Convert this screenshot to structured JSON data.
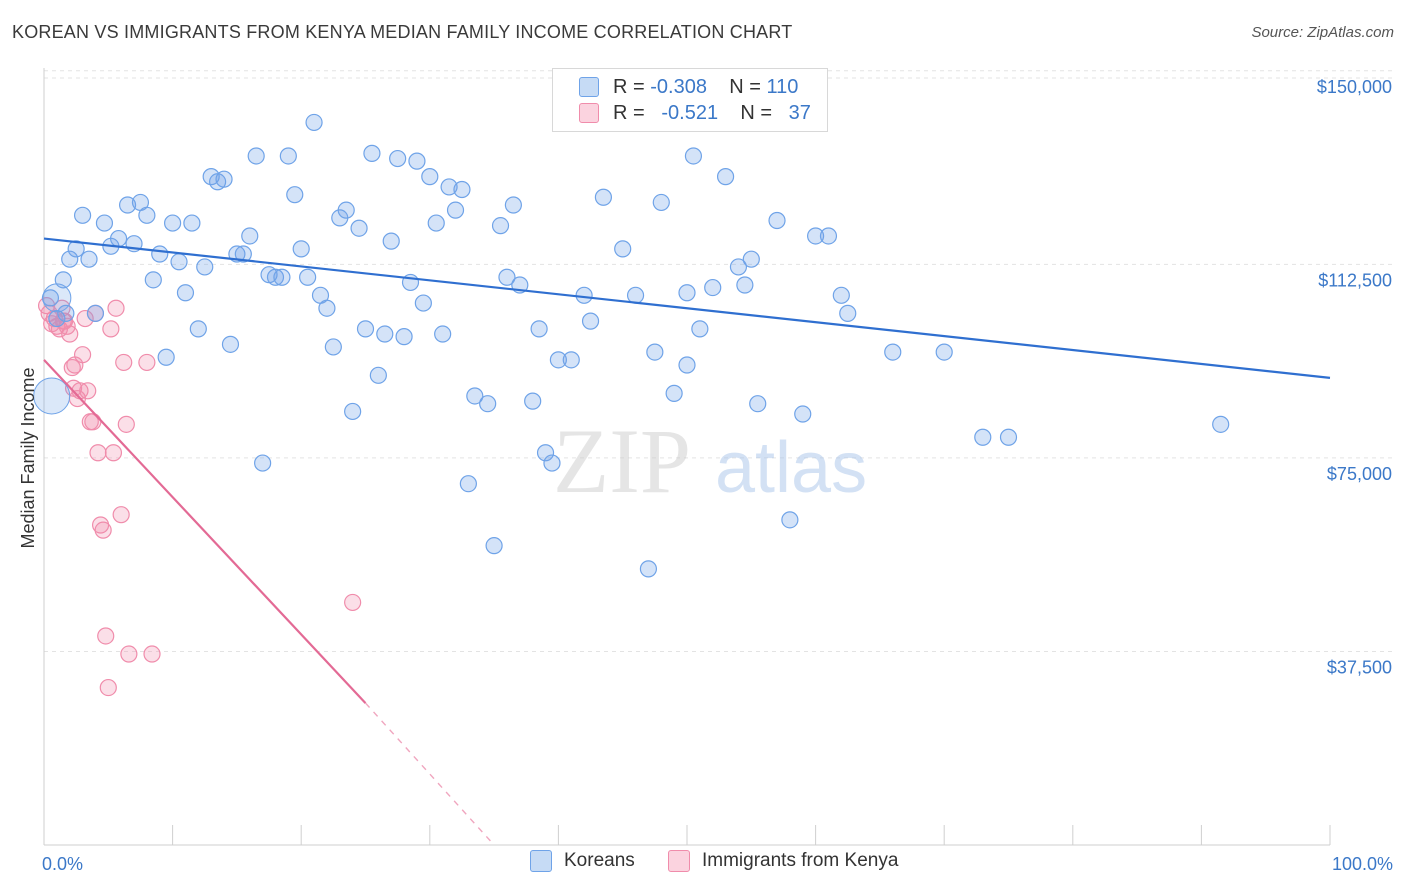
{
  "header": {
    "title": "KOREAN VS IMMIGRANTS FROM KENYA MEDIAN FAMILY INCOME CORRELATION CHART",
    "source": "Source: ZipAtlas.com"
  },
  "watermark": {
    "zip": "ZIP",
    "atlas": "atlas"
  },
  "legend": {
    "rows": [
      {
        "r_label": "R =",
        "r_value": "-0.308",
        "n_label": "N =",
        "n_value": "110",
        "color": "#6fa3e8"
      },
      {
        "r_label": "R =",
        "r_value": "-0.521",
        "n_label": "N =",
        "n_value": "37",
        "color": "#f08cab"
      }
    ]
  },
  "bottom_legend": {
    "koreans": "Koreans",
    "kenya": "Immigrants from Kenya"
  },
  "chart_data": {
    "type": "scatter",
    "title": "KOREAN VS IMMIGRANTS FROM KENYA MEDIAN FAMILY INCOME CORRELATION CHART",
    "ylabel": "Median Family Income",
    "xlabel": "",
    "xlim": [
      0,
      100
    ],
    "ylim": [
      0,
      155000
    ],
    "x_tick_labels": [
      "0.0%",
      "100.0%"
    ],
    "y_ticks": [
      37500,
      75000,
      112500,
      150000
    ],
    "y_tick_labels": [
      "$37,500",
      "$75,000",
      "$112,500",
      "$150,000"
    ],
    "grid": true,
    "series": [
      {
        "name": "Koreans",
        "color": "#6fa3e8",
        "trend": {
          "x": [
            0,
            100
          ],
          "y": [
            117500,
            90500
          ]
        },
        "points": [
          [
            0.5,
            106000
          ],
          [
            1,
            102000
          ],
          [
            1.5,
            109500
          ],
          [
            2,
            113500
          ],
          [
            2.5,
            115500
          ],
          [
            3,
            122000
          ],
          [
            3.5,
            113500
          ],
          [
            4,
            103000
          ],
          [
            4.7,
            120500
          ],
          [
            5.2,
            116000
          ],
          [
            5.8,
            117500
          ],
          [
            6.5,
            124000
          ],
          [
            7,
            116500
          ],
          [
            7.5,
            124500
          ],
          [
            8,
            122000
          ],
          [
            8.5,
            109500
          ],
          [
            9,
            114500
          ],
          [
            9.5,
            94500
          ],
          [
            10,
            120500
          ],
          [
            10.5,
            113000
          ],
          [
            11,
            107000
          ],
          [
            11.5,
            120500
          ],
          [
            12,
            100000
          ],
          [
            12.5,
            112000
          ],
          [
            13,
            129500
          ],
          [
            13.5,
            128500
          ],
          [
            14,
            129000
          ],
          [
            14.5,
            97000
          ],
          [
            15,
            114500
          ],
          [
            15.5,
            114500
          ],
          [
            16,
            118000
          ],
          [
            16.5,
            133500
          ],
          [
            17,
            74000
          ],
          [
            17.5,
            110500
          ],
          [
            18,
            110000
          ],
          [
            18.5,
            110000
          ],
          [
            19,
            133500
          ],
          [
            19.5,
            126000
          ],
          [
            20,
            115500
          ],
          [
            20.5,
            110000
          ],
          [
            21,
            140000
          ],
          [
            21.5,
            106500
          ],
          [
            22,
            104000
          ],
          [
            22.5,
            96500
          ],
          [
            23,
            121500
          ],
          [
            23.5,
            123000
          ],
          [
            24,
            84000
          ],
          [
            24.5,
            119500
          ],
          [
            25,
            100000
          ],
          [
            25.5,
            134000
          ],
          [
            26,
            91000
          ],
          [
            26.5,
            99000
          ],
          [
            27,
            117000
          ],
          [
            27.5,
            133000
          ],
          [
            28,
            98500
          ],
          [
            28.5,
            109000
          ],
          [
            29,
            132500
          ],
          [
            29.5,
            105000
          ],
          [
            30,
            129500
          ],
          [
            30.5,
            120500
          ],
          [
            31,
            99000
          ],
          [
            31.5,
            127500
          ],
          [
            32,
            123000
          ],
          [
            32.5,
            127000
          ],
          [
            33,
            70000
          ],
          [
            33.5,
            87000
          ],
          [
            34.5,
            85500
          ],
          [
            35,
            58000
          ],
          [
            35.5,
            120000
          ],
          [
            36,
            110000
          ],
          [
            36.5,
            124000
          ],
          [
            37,
            108500
          ],
          [
            38,
            86000
          ],
          [
            38.5,
            100000
          ],
          [
            39,
            76000
          ],
          [
            39.5,
            74000
          ],
          [
            40,
            94000
          ],
          [
            41,
            94000
          ],
          [
            42,
            106500
          ],
          [
            42.5,
            101500
          ],
          [
            43.5,
            125500
          ],
          [
            45,
            115500
          ],
          [
            46,
            106500
          ],
          [
            47,
            53500
          ],
          [
            47.5,
            95500
          ],
          [
            48,
            124500
          ],
          [
            49,
            87500
          ],
          [
            50,
            107000
          ],
          [
            50.5,
            133500
          ],
          [
            51,
            100000
          ],
          [
            52,
            108000
          ],
          [
            53,
            129500
          ],
          [
            54,
            112000
          ],
          [
            54.5,
            108500
          ],
          [
            55,
            113500
          ],
          [
            55.5,
            85500
          ],
          [
            57,
            121000
          ],
          [
            58,
            63000
          ],
          [
            59,
            83500
          ],
          [
            60,
            118000
          ],
          [
            61,
            118000
          ],
          [
            62,
            106500
          ],
          [
            62.5,
            103000
          ],
          [
            66,
            95500
          ],
          [
            70,
            95500
          ],
          [
            73,
            79000
          ],
          [
            75,
            79000
          ],
          [
            91.5,
            81500
          ],
          [
            1.7,
            103000
          ],
          [
            50,
            93000
          ]
        ]
      },
      {
        "name": "Immigrants from Kenya",
        "color": "#f08cab",
        "trend": {
          "x": [
            0,
            25
          ],
          "y": [
            94000,
            27500
          ]
        },
        "trend_dashed": {
          "x": [
            25,
            35
          ],
          "y": [
            27500,
            0
          ]
        },
        "points": [
          [
            0.2,
            104500
          ],
          [
            0.4,
            103000
          ],
          [
            0.6,
            101000
          ],
          [
            0.8,
            102000
          ],
          [
            1,
            100500
          ],
          [
            1.2,
            100000
          ],
          [
            1.4,
            104000
          ],
          [
            1.6,
            101500
          ],
          [
            1.8,
            100500
          ],
          [
            2,
            99000
          ],
          [
            2.2,
            92500
          ],
          [
            2.4,
            93000
          ],
          [
            2.6,
            86500
          ],
          [
            2.8,
            88000
          ],
          [
            3,
            95000
          ],
          [
            3.2,
            102000
          ],
          [
            3.4,
            88000
          ],
          [
            3.6,
            82000
          ],
          [
            3.8,
            82000
          ],
          [
            4,
            103000
          ],
          [
            4.2,
            76000
          ],
          [
            4.4,
            62000
          ],
          [
            4.6,
            61000
          ],
          [
            4.8,
            40500
          ],
          [
            5,
            30500
          ],
          [
            5.2,
            100000
          ],
          [
            5.4,
            76000
          ],
          [
            5.6,
            104000
          ],
          [
            6,
            64000
          ],
          [
            6.2,
            93500
          ],
          [
            6.4,
            81500
          ],
          [
            6.6,
            37000
          ],
          [
            8,
            93500
          ],
          [
            8.4,
            37000
          ],
          [
            24,
            47000
          ],
          [
            1.5,
            101500
          ],
          [
            2.3,
            88500
          ]
        ]
      }
    ]
  }
}
